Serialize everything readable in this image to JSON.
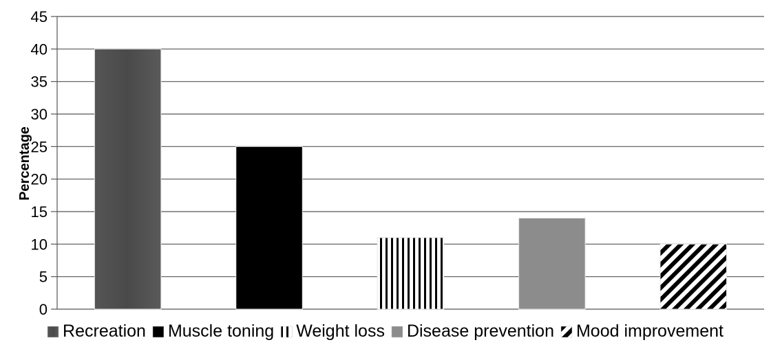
{
  "chart_data": {
    "type": "bar",
    "title": "",
    "xlabel": "",
    "ylabel": "Percentage",
    "ylim": [
      0,
      45
    ],
    "yticks": [
      0,
      5,
      10,
      15,
      20,
      25,
      30,
      35,
      40,
      45
    ],
    "grid": true,
    "legend_position": "bottom",
    "series": [
      {
        "name": "Recreation",
        "value": 40,
        "fill": "solid-dark-gray",
        "color": "#4d4d4d"
      },
      {
        "name": "Muscle toning",
        "value": 25,
        "fill": "solid-black",
        "color": "#000000"
      },
      {
        "name": "Weight loss",
        "value": 11,
        "fill": "vertical-stripes",
        "color": "#000000"
      },
      {
        "name": "Disease prevention",
        "value": 14,
        "fill": "solid-light-gray",
        "color": "#8c8c8c"
      },
      {
        "name": "Mood improvement",
        "value": 10,
        "fill": "diagonal-stripes",
        "color": "#000000"
      }
    ]
  }
}
